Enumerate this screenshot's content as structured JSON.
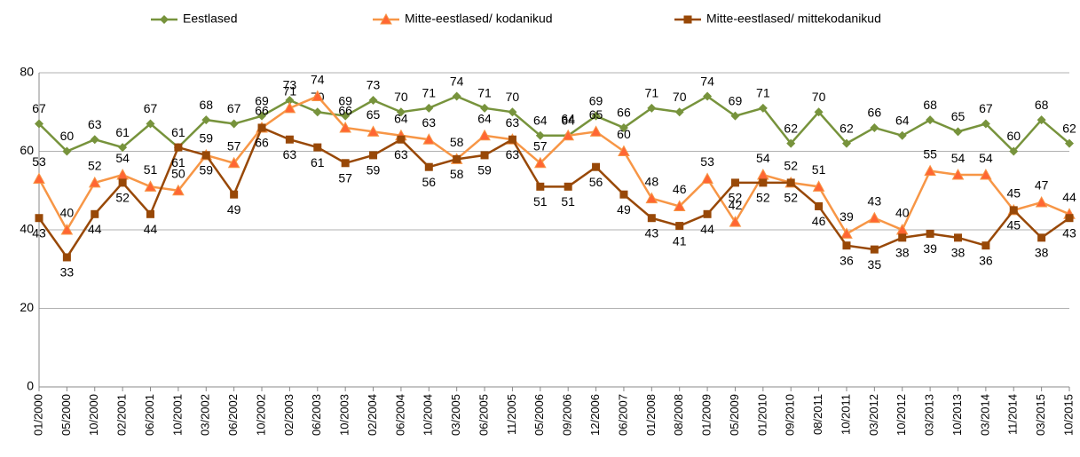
{
  "chart_data": {
    "type": "line",
    "categories": [
      "01/2000",
      "05/2000",
      "10/2000",
      "02/2001",
      "06/2001",
      "10/2001",
      "03/2002",
      "06/2002",
      "10/2002",
      "02/2003",
      "06/2003",
      "10/2003",
      "02/2004",
      "06/2004",
      "10/2004",
      "03/2005",
      "06/2005",
      "11/2005",
      "05/2006",
      "09/2006",
      "12/2006",
      "06/2007",
      "01/2008",
      "08/2008",
      "01/2009",
      "05/2009",
      "01/2010",
      "09/2010",
      "08/2011",
      "10/2011",
      "03/2012",
      "10/2012",
      "03/2013",
      "10/2013",
      "03/2014",
      "11/2014",
      "03/2015",
      "10/2015"
    ],
    "series": [
      {
        "name": "Eestlased",
        "color": "#77933c",
        "marker": "diamond",
        "values": [
          67,
          60,
          63,
          61,
          67,
          61,
          68,
          67,
          69,
          73,
          70,
          69,
          73,
          70,
          71,
          74,
          71,
          70,
          64,
          64,
          69,
          66,
          71,
          70,
          74,
          69,
          71,
          62,
          70,
          62,
          66,
          64,
          68,
          65,
          67,
          60,
          68,
          62
        ]
      },
      {
        "name": "Mitte-eestlased/ kodanikud",
        "color": "#f79646",
        "marker": "triangle",
        "values": [
          53,
          40,
          52,
          54,
          51,
          50,
          59,
          57,
          66,
          71,
          74,
          66,
          65,
          64,
          63,
          58,
          64,
          63,
          57,
          64,
          65,
          60,
          48,
          46,
          53,
          42,
          54,
          52,
          51,
          39,
          43,
          40,
          55,
          54,
          54,
          45,
          47,
          44
        ]
      },
      {
        "name": "Mitte-eestlased/ mittekodanikud",
        "color": "#984807",
        "marker": "square",
        "values": [
          43,
          33,
          44,
          52,
          44,
          61,
          59,
          49,
          66,
          63,
          61,
          57,
          59,
          63,
          56,
          58,
          59,
          63,
          51,
          51,
          56,
          49,
          43,
          41,
          44,
          52,
          52,
          52,
          46,
          36,
          35,
          38,
          39,
          38,
          36,
          45,
          38,
          43
        ]
      }
    ],
    "ylim": [
      0,
      80
    ],
    "yticks": [
      0,
      20,
      40,
      60,
      80
    ],
    "grid": true,
    "legend": "top"
  }
}
